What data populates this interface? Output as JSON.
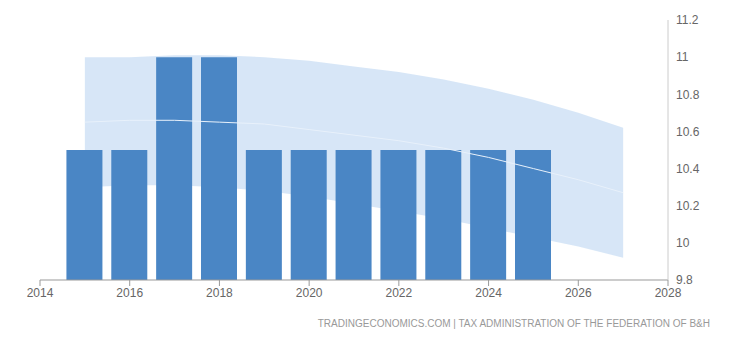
{
  "chart_data": {
    "type": "bar",
    "source": "TRADINGECONOMICS.COM | TAX ADMINISTRATION OF THE FEDERATION OF B&H",
    "x": [
      2015,
      2016,
      2017,
      2018,
      2019,
      2020,
      2021,
      2022,
      2023,
      2024,
      2025
    ],
    "values": [
      10.5,
      10.5,
      11,
      11,
      10.5,
      10.5,
      10.5,
      10.5,
      10.5,
      10.5,
      10.5
    ],
    "color": "#4a86c5",
    "xlim": [
      2014,
      2028
    ],
    "xticks": [
      2014,
      2016,
      2018,
      2020,
      2022,
      2024,
      2026,
      2028
    ],
    "ylim": [
      9.8,
      11.2
    ],
    "yticks": [
      9.8,
      10,
      10.2,
      10.4,
      10.6,
      10.8,
      11,
      11.2
    ],
    "grid": false,
    "forecast_band": {
      "x": [
        2015,
        2016,
        2017,
        2018,
        2019,
        2020,
        2021,
        2022,
        2023,
        2024,
        2025,
        2026,
        2027
      ],
      "upper": [
        11.0,
        11.0,
        11.01,
        11.01,
        11.0,
        10.98,
        10.95,
        10.92,
        10.88,
        10.83,
        10.77,
        10.7,
        10.62
      ],
      "lower": [
        10.3,
        10.31,
        10.31,
        10.3,
        10.28,
        10.25,
        10.21,
        10.17,
        10.13,
        10.08,
        10.03,
        9.98,
        9.92
      ],
      "mid": [
        10.65,
        10.66,
        10.66,
        10.65,
        10.64,
        10.61,
        10.58,
        10.55,
        10.51,
        10.46,
        10.4,
        10.34,
        10.27
      ]
    }
  }
}
